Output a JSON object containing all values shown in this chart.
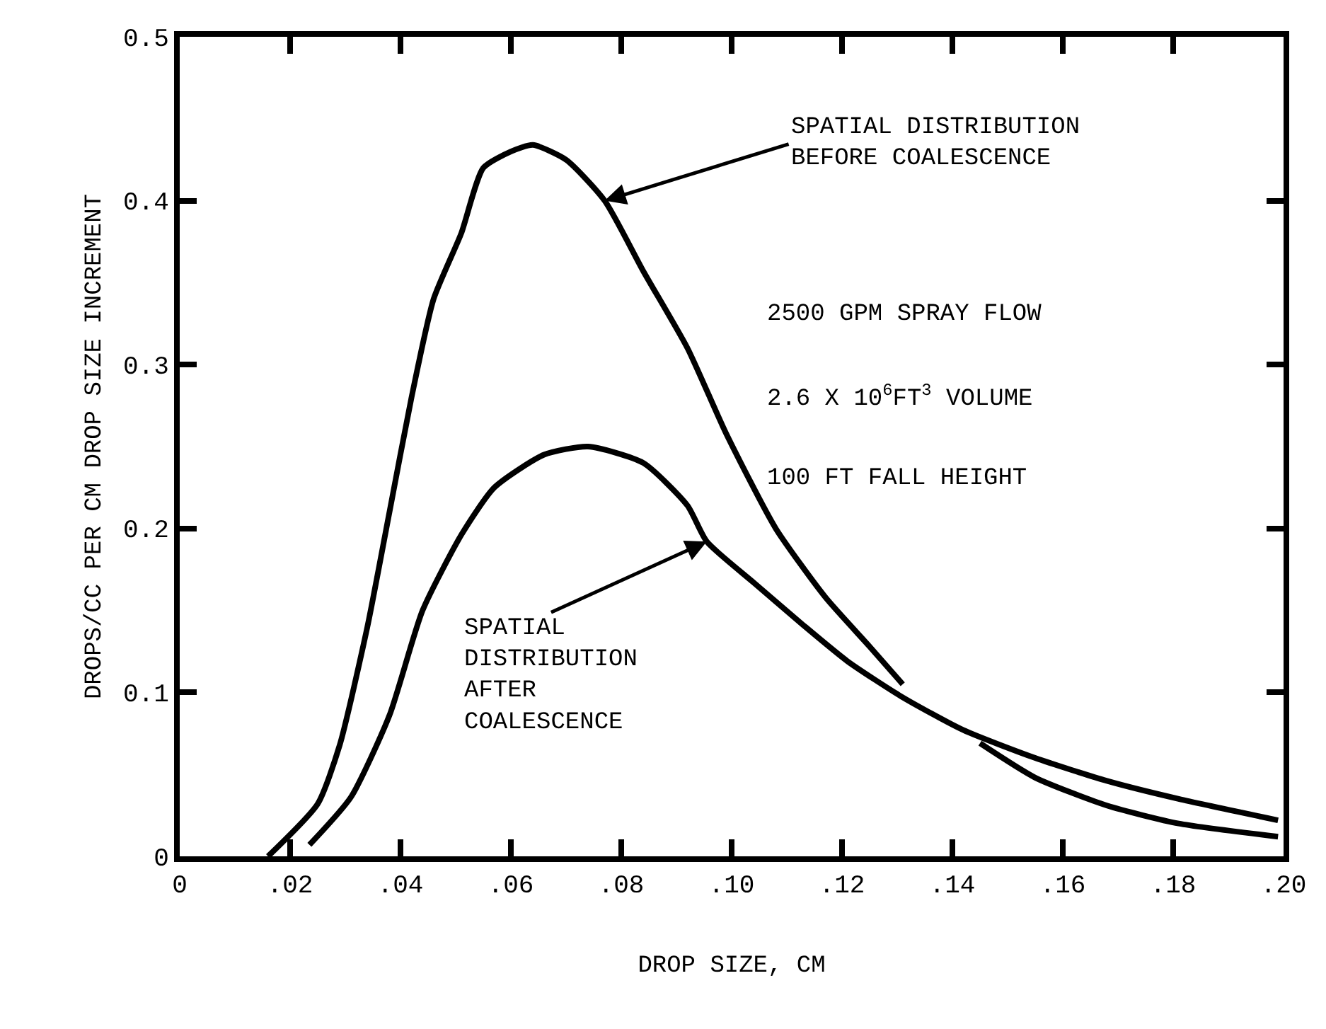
{
  "chart_data": {
    "type": "line",
    "xlabel": "DROP SIZE, CM",
    "ylabel": "DROPS/CC PER CM DROP SIZE INCREMENT",
    "series": [
      {
        "color": "#000000",
        "x": [
          0.016,
          0.025,
          0.029,
          0.034,
          0.038,
          0.042,
          0.046,
          0.051,
          0.055,
          0.06,
          0.064,
          0.07,
          0.077,
          0.084,
          0.092,
          0.099,
          0.108,
          0.117,
          0.125,
          0.131
        ],
        "values": [
          0,
          0.032,
          0.068,
          0.14,
          0.21,
          0.28,
          0.34,
          0.38,
          0.42,
          0.43,
          0.434,
          0.425,
          0.4,
          0.357,
          0.31,
          0.258,
          0.2,
          0.158,
          0.128,
          0.105
        ]
      },
      {
        "color": "#000000",
        "x": [
          0.0235,
          0.031,
          0.038,
          0.044,
          0.051,
          0.057,
          0.066,
          0.074,
          0.084,
          0.092,
          0.0955,
          0.104,
          0.113,
          0.121,
          0.131,
          0.142,
          0.155,
          0.168,
          0.181,
          0.199
        ],
        "values": [
          0.007,
          0.036,
          0.086,
          0.15,
          0.196,
          0.225,
          0.245,
          0.25,
          0.24,
          0.214,
          0.192,
          0.167,
          0.141,
          0.119,
          0.097,
          0.077,
          0.06,
          0.046,
          0.035,
          0.022
        ]
      },
      {
        "color": "#000000",
        "x": [
          0.145,
          0.155,
          0.168,
          0.181,
          0.199
        ],
        "values": [
          0.069,
          0.048,
          0.031,
          0.02,
          0.012
        ]
      }
    ],
    "xlim": [
      0,
      0.2
    ],
    "ylim": [
      0,
      0.5
    ],
    "xticks": [
      0,
      {
        "value": 0.02,
        "label": ".02"
      },
      {
        "value": 0.04,
        "label": ".04"
      },
      {
        "value": 0.06,
        "label": ".06"
      },
      {
        "value": 0.08,
        "label": ".08"
      },
      {
        "value": 0.1,
        "label": ".10"
      },
      {
        "value": 0.12,
        "label": ".12"
      },
      {
        "value": 0.14,
        "label": ".14"
      },
      {
        "value": 0.16,
        "label": ".16"
      },
      {
        "value": 0.18,
        "label": ".18"
      },
      {
        "value": 0.2,
        "label": ".20"
      }
    ],
    "yticks": [
      0,
      0.1,
      0.2,
      0.3,
      0.4,
      0.5
    ],
    "marker": "none",
    "line_style": "solid",
    "annotations": [
      {
        "text": "SPATIAL DISTRIBUTION\nBEFORE COALESCENCE",
        "x": 0.077,
        "y": 0.4
      },
      {
        "text": "SPATIAL\nDISTRIBUTION\nAFTER\nCOALESCENCE",
        "x": 0.0955,
        "y": 0.192
      },
      "2500 GPM SPRAY FLOW",
      "2.6 X 10$^{6}$FT$^{3}$ VOLUME",
      "100 FT FALL HEIGHT"
    ]
  }
}
